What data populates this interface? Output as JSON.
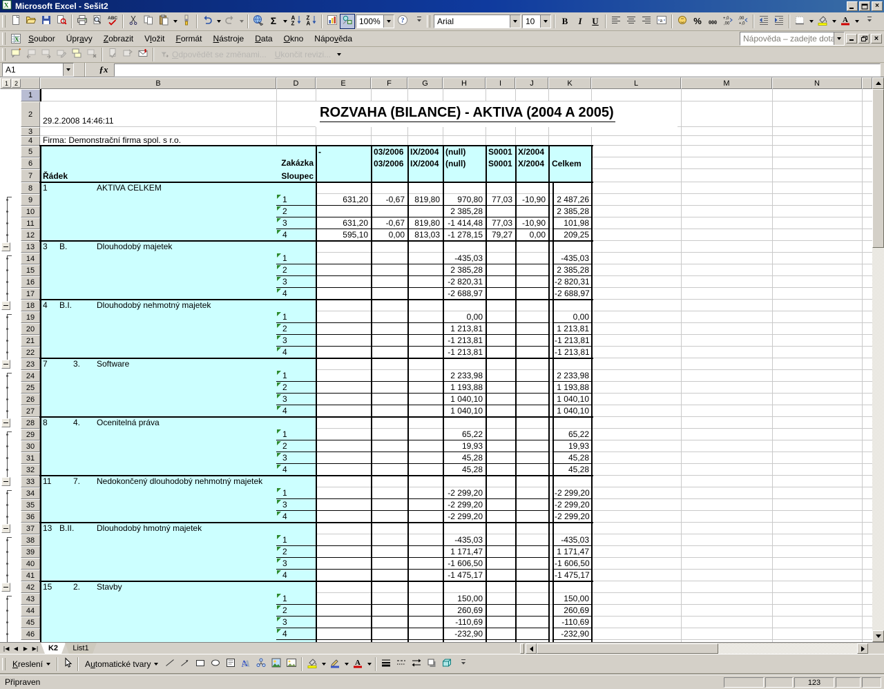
{
  "window": {
    "title": "Microsoft Excel - Sešit2"
  },
  "menu_bar": {
    "items": [
      {
        "label": "Soubor",
        "u": 0
      },
      {
        "label": "Úpravy",
        "u": 3
      },
      {
        "label": "Zobrazit",
        "u": 0
      },
      {
        "label": "Vložit",
        "u": 1
      },
      {
        "label": "Formát",
        "u": 0
      },
      {
        "label": "Nástroje",
        "u": 0
      },
      {
        "label": "Data",
        "u": 0
      },
      {
        "label": "Okno",
        "u": 0
      },
      {
        "label": "Nápověda",
        "u": 4
      }
    ],
    "help_search_placeholder": "Nápověda – zadejte dotaz"
  },
  "standard_toolbar": {
    "zoom": "100%",
    "buttons": [
      "new-document",
      "open",
      "save",
      "search",
      "sep",
      "print",
      "print-preview",
      "spelling",
      "sep",
      "cut",
      "copy",
      "paste:dd",
      "format-painter",
      "sep",
      "undo:dd",
      "redo:dd:dis",
      "sep",
      "insert-hyperlink",
      "autosum:dd",
      "sort-ascending",
      "sort-descending",
      "sep",
      "chart-wizard",
      "drawing:pressed",
      "zoom-combo",
      "help",
      "chevron"
    ]
  },
  "formatting_toolbar": {
    "font": "Arial",
    "font_size": "10",
    "buttons": [
      "handle",
      "font-combo",
      "size-combo",
      "sep",
      "bold",
      "italic",
      "underline",
      "sep",
      "align-left",
      "align-center",
      "align-right",
      "merge-center",
      "sep",
      "currency",
      "percent",
      "comma-style",
      "increase-decimal",
      "decrease-decimal",
      "sep",
      "decrease-indent",
      "increase-indent",
      "sep",
      "borders:dd",
      "fill-color:dd",
      "font-color:dd",
      "chevron"
    ]
  },
  "reviewing_toolbar": {
    "buttons": [
      "insert-comment",
      "previous-comment:dis",
      "next-comment:dis",
      "edit-comment:dis",
      "show-all-comments",
      "delete-comment:dis",
      "sep",
      "update-file:dis",
      "send-to-review:dis",
      "mail-recipient",
      "sep"
    ],
    "reply_with_changes": "Odpovědět se změnami...",
    "end_review": "Ukončit revizi..."
  },
  "formula_bar": {
    "name_box": "A1",
    "fx": "ƒx"
  },
  "outline": {
    "levels": [
      "1",
      "2"
    ]
  },
  "worksheet": {
    "columns": [
      "B",
      "D",
      "E",
      "F",
      "G",
      "H",
      "I",
      "J",
      "K",
      "L",
      "M",
      "N"
    ],
    "b2": "29.2.2008 14:46:11",
    "title": "ROZVAHA (BILANCE) - AKTIVA (2004 A 2005)",
    "b4": "Firma: Demonstrační firma spol. s r.o.",
    "pivot_header": {
      "radek": "Řádek",
      "zakazka": "Zakázka",
      "sloupec": "Sloupec",
      "dash": "-",
      "f": [
        "03/2006",
        "03/2006"
      ],
      "g": [
        "IX/2004",
        "IX/2004"
      ],
      "h": [
        "(null)",
        "(null)"
      ],
      "i": [
        "S0001",
        "S0001"
      ],
      "j": [
        "X/2004",
        "X/2004"
      ],
      "celkem": "Celkem"
    },
    "sections": [
      {
        "row": 8,
        "code": "1",
        "sub": "",
        "name": "AKTIVA CELKEM",
        "details": [
          {
            "d": "1",
            "E": "631,20",
            "F": "-0,67",
            "G": "819,80",
            "H": "970,80",
            "I": "77,03",
            "J": "-10,90",
            "K": "2 487,26"
          },
          {
            "d": "2",
            "H": "2 385,28",
            "K": "2 385,28"
          },
          {
            "d": "3",
            "E": "631,20",
            "F": "-0,67",
            "G": "819,80",
            "H": "-1 414,48",
            "I": "77,03",
            "J": "-10,90",
            "K": "101,98"
          },
          {
            "d": "4",
            "E": "595,10",
            "F": "0,00",
            "G": "813,03",
            "H": "-1 278,15",
            "I": "79,27",
            "J": "0,00",
            "K": "209,25"
          }
        ]
      },
      {
        "row": 13,
        "code": "3",
        "sub": "B.",
        "name": "Dlouhodobý majetek",
        "details": [
          {
            "d": "1",
            "H": "-435,03",
            "K": "-435,03"
          },
          {
            "d": "2",
            "H": "2 385,28",
            "K": "2 385,28"
          },
          {
            "d": "3",
            "H": "-2 820,31",
            "K": "-2 820,31"
          },
          {
            "d": "4",
            "H": "-2 688,97",
            "K": "-2 688,97"
          }
        ]
      },
      {
        "row": 18,
        "code": "4",
        "sub": "B.I.",
        "name": "Dlouhodobý nehmotný majetek",
        "details": [
          {
            "d": "1",
            "H": "0,00",
            "K": "0,00"
          },
          {
            "d": "2",
            "H": "1 213,81",
            "K": "1 213,81"
          },
          {
            "d": "3",
            "H": "-1 213,81",
            "K": "-1 213,81"
          },
          {
            "d": "4",
            "H": "-1 213,81",
            "K": "-1 213,81"
          }
        ]
      },
      {
        "row": 23,
        "code": "7",
        "sub": "3.",
        "name": "Software",
        "details": [
          {
            "d": "1",
            "H": "2 233,98",
            "K": "2 233,98"
          },
          {
            "d": "2",
            "H": "1 193,88",
            "K": "1 193,88"
          },
          {
            "d": "3",
            "H": "1 040,10",
            "K": "1 040,10"
          },
          {
            "d": "4",
            "H": "1 040,10",
            "K": "1 040,10"
          }
        ]
      },
      {
        "row": 28,
        "code": "8",
        "sub": "4.",
        "name": "Ocenitelná práva",
        "details": [
          {
            "d": "1",
            "H": "65,22",
            "K": "65,22"
          },
          {
            "d": "2",
            "H": "19,93",
            "K": "19,93"
          },
          {
            "d": "3",
            "H": "45,28",
            "K": "45,28"
          },
          {
            "d": "4",
            "H": "45,28",
            "K": "45,28"
          }
        ]
      },
      {
        "row": 33,
        "code": "11",
        "sub": "7.",
        "name": "Nedokončený dlouhodobý nehmotný majetek",
        "details": [
          {
            "d": "1",
            "H": "-2 299,20",
            "K": "-2 299,20"
          },
          {
            "d": "3",
            "H": "-2 299,20",
            "K": "-2 299,20"
          },
          {
            "d": "4",
            "H": "-2 299,20",
            "K": "-2 299,20"
          }
        ]
      },
      {
        "row": 37,
        "code": "13",
        "sub": "B.II.",
        "name": "Dlouhodobý hmotný majetek",
        "details": [
          {
            "d": "1",
            "H": "-435,03",
            "K": "-435,03"
          },
          {
            "d": "2",
            "H": "1 171,47",
            "K": "1 171,47"
          },
          {
            "d": "3",
            "H": "-1 606,50",
            "K": "-1 606,50"
          },
          {
            "d": "4",
            "H": "-1 475,17",
            "K": "-1 475,17"
          }
        ]
      },
      {
        "row": 42,
        "code": "15",
        "sub": "2.",
        "name": "Stavby",
        "details": [
          {
            "d": "1",
            "H": "150,00",
            "K": "150,00"
          },
          {
            "d": "2",
            "H": "260,69",
            "K": "260,69"
          },
          {
            "d": "3",
            "H": "-110,69",
            "K": "-110,69"
          },
          {
            "d": "4",
            "H": "-232,90",
            "K": "-232,90"
          }
        ]
      }
    ]
  },
  "sheet_tabs": [
    {
      "label": "K2",
      "active": true
    },
    {
      "label": "List1",
      "active": false
    }
  ],
  "drawing_toolbar": {
    "menu_label": "Kreslení",
    "autoshapes_label": "Automatické tvary",
    "buttons": [
      "select-objects",
      "sep2",
      "line",
      "arrow",
      "rectangle",
      "oval",
      "text-box",
      "wordart",
      "diagram",
      "clip-art",
      "picture",
      "sep",
      "fill-color:dd",
      "line-color:dd",
      "font-color:dd",
      "sep",
      "line-style",
      "dash-style",
      "arrow-style",
      "shadow-style",
      "3d-style",
      "chevron"
    ]
  },
  "status_bar": {
    "mode": "Připraven",
    "indicator": "123"
  }
}
